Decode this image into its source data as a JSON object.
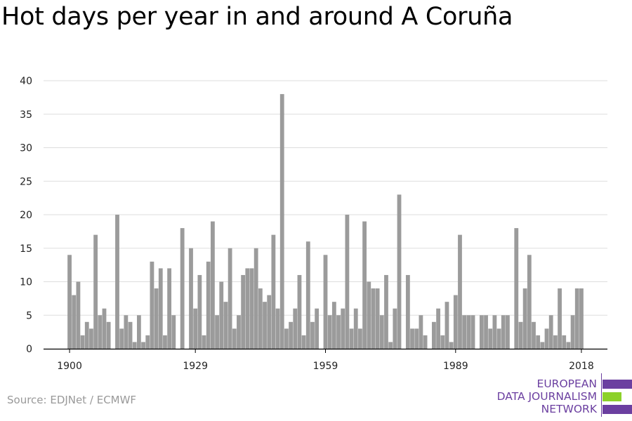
{
  "colors": {
    "bar": "#9b9b9b",
    "grid": "#dddddd",
    "axis": "#000000",
    "logo_purple": "#6b3fa0",
    "logo_green": "#8cd12a"
  },
  "source": "Source: EDJNet / ECMWF",
  "logo": {
    "lines": [
      "EUROPEAN",
      "DATA JOURNALISM",
      "NETWORK"
    ]
  },
  "chart_data": {
    "type": "bar",
    "title": "Hot days per year in and around A Coruña",
    "xlabel": "",
    "ylabel": "",
    "ylim": [
      0,
      40
    ],
    "yticks": [
      0,
      5,
      10,
      15,
      20,
      25,
      30,
      35,
      40
    ],
    "xticks": [
      1900,
      1929,
      1959,
      1989,
      2018
    ],
    "xlim": [
      1894,
      2024
    ],
    "grid": true,
    "x": [
      1900,
      1901,
      1902,
      1903,
      1904,
      1905,
      1906,
      1907,
      1908,
      1909,
      1910,
      1911,
      1912,
      1913,
      1914,
      1915,
      1916,
      1917,
      1918,
      1919,
      1920,
      1921,
      1922,
      1923,
      1924,
      1925,
      1926,
      1927,
      1928,
      1929,
      1930,
      1931,
      1932,
      1933,
      1934,
      1935,
      1936,
      1937,
      1938,
      1939,
      1940,
      1941,
      1942,
      1943,
      1944,
      1945,
      1946,
      1947,
      1948,
      1949,
      1950,
      1951,
      1952,
      1953,
      1954,
      1955,
      1956,
      1957,
      1958,
      1959,
      1960,
      1961,
      1962,
      1963,
      1964,
      1965,
      1966,
      1967,
      1968,
      1969,
      1970,
      1971,
      1972,
      1973,
      1974,
      1975,
      1976,
      1977,
      1978,
      1979,
      1980,
      1981,
      1982,
      1983,
      1984,
      1985,
      1986,
      1987,
      1988,
      1989,
      1990,
      1991,
      1992,
      1993,
      1994,
      1995,
      1996,
      1997,
      1998,
      1999,
      2000,
      2001,
      2002,
      2003,
      2004,
      2005,
      2006,
      2007,
      2008,
      2009,
      2010,
      2011,
      2012,
      2013,
      2014,
      2015,
      2016,
      2017,
      2018
    ],
    "values": [
      14,
      8,
      10,
      2,
      4,
      3,
      17,
      5,
      6,
      4,
      0,
      20,
      3,
      5,
      4,
      1,
      5,
      1,
      2,
      13,
      9,
      12,
      2,
      12,
      5,
      0,
      18,
      0,
      15,
      6,
      11,
      2,
      13,
      19,
      5,
      10,
      7,
      15,
      3,
      5,
      11,
      12,
      12,
      15,
      9,
      7,
      8,
      17,
      6,
      38,
      3,
      4,
      6,
      11,
      2,
      16,
      4,
      6,
      0,
      14,
      5,
      7,
      5,
      6,
      20,
      3,
      6,
      3,
      19,
      10,
      9,
      9,
      5,
      11,
      1,
      6,
      23,
      0,
      11,
      3,
      3,
      5,
      2,
      0,
      4,
      6,
      2,
      7,
      1,
      8,
      17,
      5,
      5,
      5,
      0,
      5,
      5,
      3,
      5,
      3,
      5,
      5,
      0,
      18,
      4,
      9,
      14,
      4,
      2,
      1,
      3,
      5,
      2,
      9,
      2,
      1,
      5,
      9,
      9
    ]
  }
}
